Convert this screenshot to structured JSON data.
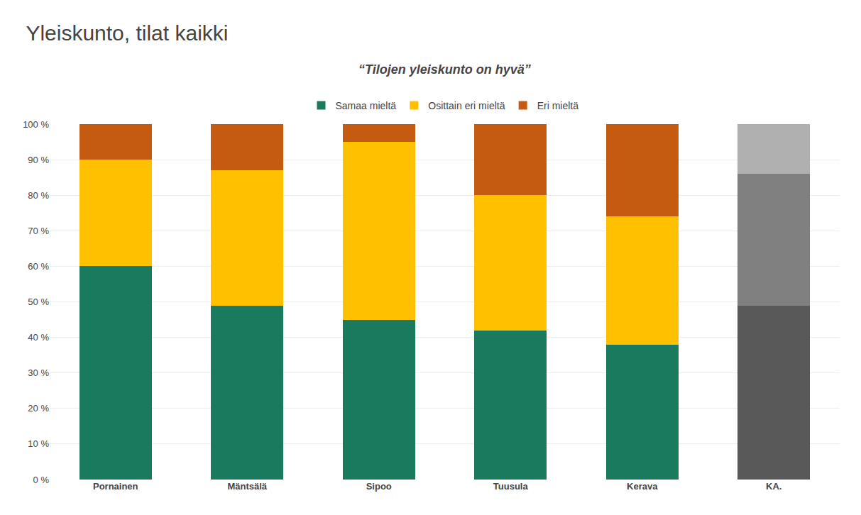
{
  "chart_data": {
    "type": "bar",
    "stacked": true,
    "title": "Yleiskunto, tilat kaikki",
    "subtitle": "“Tilojen yleiskunto on hyvä”",
    "categories": [
      "Pornainen",
      "Mäntsälä",
      "Sipoo",
      "Tuusula",
      "Kerava",
      "KA."
    ],
    "series": [
      {
        "name": "Samaa mieltä",
        "color": "#1a7a5e",
        "colors": [
          "#1a7a5e",
          "#1a7a5e",
          "#1a7a5e",
          "#1a7a5e",
          "#1a7a5e",
          "#595959"
        ],
        "values": [
          60,
          49,
          45,
          42,
          38,
          49
        ]
      },
      {
        "name": "Osittain eri mieltä",
        "color": "#ffc000",
        "colors": [
          "#ffc000",
          "#ffc000",
          "#ffc000",
          "#ffc000",
          "#ffc000",
          "#808080"
        ],
        "values": [
          30,
          38,
          50,
          38,
          36,
          37
        ]
      },
      {
        "name": "Eri mieltä",
        "color": "#c55a11",
        "colors": [
          "#c55a11",
          "#c55a11",
          "#c55a11",
          "#c55a11",
          "#c55a11",
          "#b0b0b0"
        ],
        "values": [
          10,
          13,
          5,
          20,
          26,
          14
        ]
      }
    ],
    "ylim": [
      0,
      100
    ],
    "yticks": [
      {
        "value": 0,
        "label": "0 %"
      },
      {
        "value": 10,
        "label": "10 %"
      },
      {
        "value": 20,
        "label": "20 %"
      },
      {
        "value": 30,
        "label": "30 %"
      },
      {
        "value": 40,
        "label": "40 %"
      },
      {
        "value": 50,
        "label": "50 %"
      },
      {
        "value": 60,
        "label": "60 %"
      },
      {
        "value": 70,
        "label": "70 %"
      },
      {
        "value": 80,
        "label": "80 %"
      },
      {
        "value": 90,
        "label": "90 %"
      },
      {
        "value": 100,
        "label": "100 %"
      }
    ],
    "grid": true,
    "legend": "top"
  }
}
